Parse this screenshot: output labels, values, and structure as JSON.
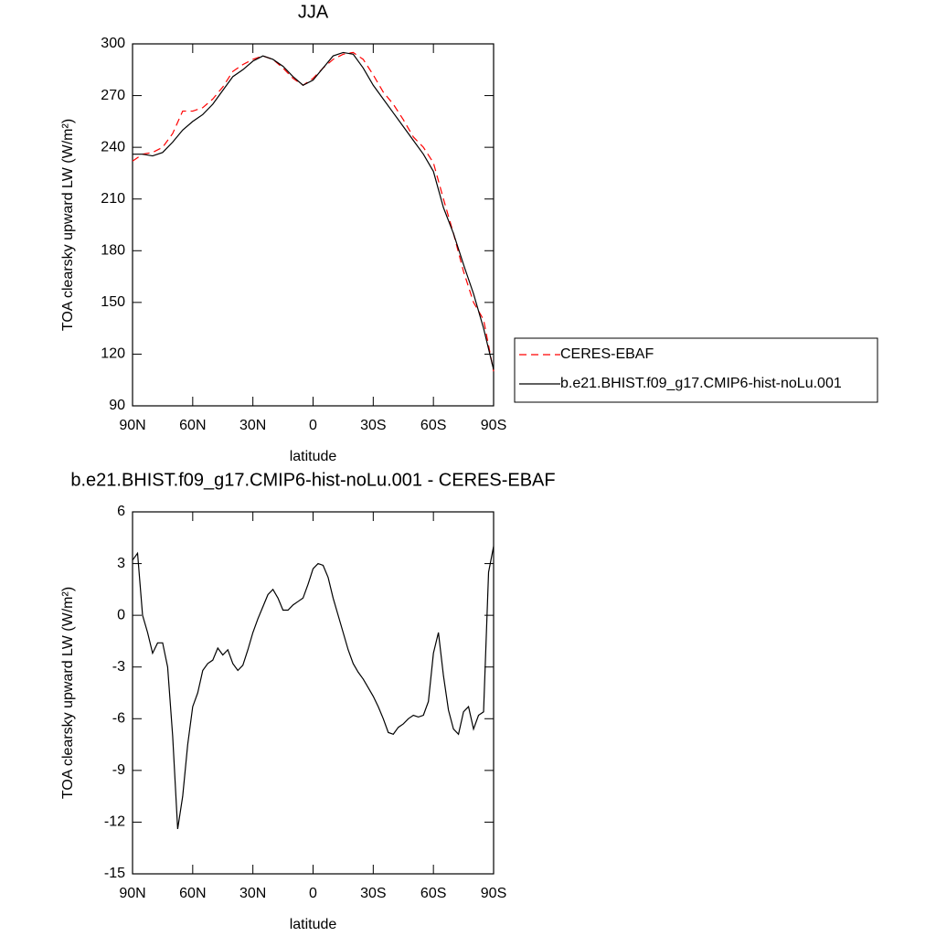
{
  "chart_data": [
    {
      "type": "line",
      "title": "JJA",
      "xlabel": "latitude",
      "ylabel": "TOA clearsky upward LW (W/m²)",
      "x": [
        90,
        85,
        80,
        75,
        70,
        65,
        60,
        55,
        50,
        45,
        40,
        35,
        30,
        25,
        20,
        15,
        10,
        5,
        0,
        -5,
        -10,
        -15,
        -20,
        -25,
        -30,
        -35,
        -40,
        -45,
        -50,
        -55,
        -60,
        -65,
        -70,
        -75,
        -80,
        -85,
        -90
      ],
      "series": [
        {
          "name": "CERES-EBAF",
          "color": "#ff0000",
          "dash": true,
          "values": [
            232,
            236,
            237,
            240,
            248,
            261,
            261,
            263,
            268,
            275,
            284,
            288,
            291,
            293,
            291,
            286,
            280,
            276,
            280,
            286,
            291,
            294,
            295,
            291,
            282,
            272,
            265,
            256,
            246,
            240,
            231,
            210,
            190,
            168,
            150,
            140,
            110
          ]
        },
        {
          "name": "b.e21.BHIST.f09_g17.CMIP6-hist-noLu.001",
          "color": "#000000",
          "dash": false,
          "values": [
            236,
            236,
            235,
            237,
            243,
            250,
            255,
            259,
            265,
            273,
            281,
            285,
            290,
            293,
            291,
            287,
            281,
            276,
            279,
            286,
            293,
            295,
            294,
            286,
            276,
            268,
            260,
            252,
            244,
            236,
            226,
            205,
            190,
            172,
            155,
            135,
            111
          ]
        }
      ],
      "xlim": [
        90,
        -90
      ],
      "xticks": [
        {
          "value": 90,
          "label": "90N"
        },
        {
          "value": 60,
          "label": "60N"
        },
        {
          "value": 30,
          "label": "30N"
        },
        0,
        {
          "value": -30,
          "label": "30S"
        },
        {
          "value": -60,
          "label": "60S"
        },
        {
          "value": -90,
          "label": "90S"
        }
      ],
      "ylim": [
        90,
        300
      ],
      "yticks": [
        90,
        120,
        150,
        180,
        210,
        240,
        270,
        300
      ],
      "legend": "right"
    },
    {
      "type": "line",
      "title": "b.e21.BHIST.f09_g17.CMIP6-hist-noLu.001 - CERES-EBAF",
      "xlabel": "latitude",
      "ylabel": "TOA clearsky upward LW (W/m²)",
      "x": [
        90,
        87.5,
        85,
        82.5,
        80,
        77.5,
        75,
        72.5,
        70,
        67.5,
        65,
        62.5,
        60,
        57.5,
        55,
        52.5,
        50,
        47.5,
        45,
        42.5,
        40,
        37.5,
        35,
        32.5,
        30,
        27.5,
        25,
        22.5,
        20,
        17.5,
        15,
        12.5,
        10,
        7.5,
        5,
        2.5,
        0,
        -2.5,
        -5,
        -7.5,
        -10,
        -12.5,
        -15,
        -17.5,
        -20,
        -22.5,
        -25,
        -27.5,
        -30,
        -32.5,
        -35,
        -37.5,
        -40,
        -42.5,
        -45,
        -47.5,
        -50,
        -52.5,
        -55,
        -57.5,
        -60,
        -62.5,
        -65,
        -67.5,
        -70,
        -72.5,
        -75,
        -77.5,
        -80,
        -82.5,
        -85,
        -87.5,
        -90
      ],
      "series": [
        {
          "color": "#000000",
          "dash": false,
          "values": [
            3.2,
            3.6,
            0,
            -1,
            -2.2,
            -1.6,
            -1.6,
            -3,
            -7,
            -12.4,
            -10.5,
            -7.5,
            -5.3,
            -4.5,
            -3.2,
            -2.8,
            -2.6,
            -1.9,
            -2.3,
            -2,
            -2.8,
            -3.2,
            -2.9,
            -2,
            -1,
            -0.2,
            0.5,
            1.2,
            1.5,
            1.0,
            0.3,
            0.3,
            0.6,
            0.8,
            1.0,
            1.8,
            2.7,
            3.0,
            2.9,
            2.2,
            1.0,
            0,
            -1,
            -2,
            -2.8,
            -3.3,
            -3.7,
            -4.2,
            -4.7,
            -5.3,
            -6,
            -6.8,
            -6.9,
            -6.5,
            -6.3,
            -6,
            -5.8,
            -5.9,
            -5.8,
            -5,
            -2.2,
            -1,
            -3.5,
            -5.5,
            -6.6,
            -6.9,
            -5.6,
            -5.3,
            -6.6,
            -5.8,
            -5.6,
            2.5,
            4.0
          ]
        }
      ],
      "xlim": [
        90,
        -90
      ],
      "xticks": [
        {
          "value": 90,
          "label": "90N"
        },
        {
          "value": 60,
          "label": "60N"
        },
        {
          "value": 30,
          "label": "30N"
        },
        0,
        {
          "value": -30,
          "label": "30S"
        },
        {
          "value": -60,
          "label": "60S"
        },
        {
          "value": -90,
          "label": "90S"
        }
      ],
      "ylim": [
        -15,
        6
      ],
      "yticks": [
        -15,
        -12,
        -9,
        -6,
        -3,
        0,
        3,
        6
      ]
    }
  ]
}
